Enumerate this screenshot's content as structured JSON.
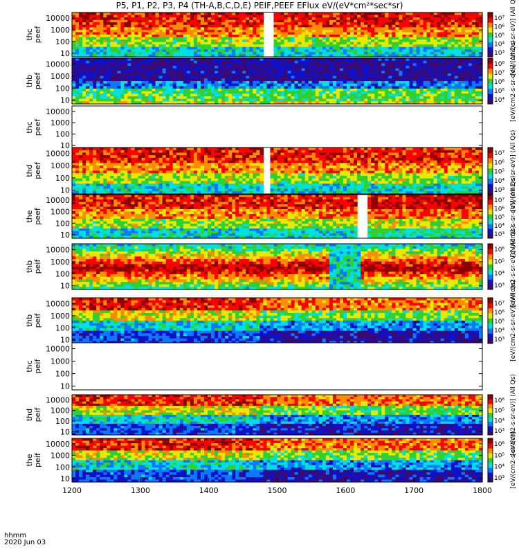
{
  "chart_data": {
    "type": "heatmap",
    "title": "P5, P1, P2, P3, P4 (TH-A,B,C,D,E) PEIF,PEEF EFlux eV/(eV*cm²*sec*sr)",
    "x_ticks": [
      "1200",
      "1300",
      "1400",
      "1500",
      "1600",
      "1700",
      "1800"
    ],
    "xlim": [
      1200,
      1800
    ],
    "x_unit_label": "hhmm",
    "date_label": "2020 Jun 03",
    "y_scale": "log",
    "ylim": [
      5,
      30000
    ],
    "y_ticks": [
      "10",
      "100",
      "1000",
      "10000"
    ],
    "colorscale": [
      "#3c0a6e",
      "#1010c8",
      "#0a78ff",
      "#00e0e0",
      "#30d030",
      "#e8e800",
      "#ff8c00",
      "#ff0000",
      "#8c0000"
    ],
    "panels": [
      {
        "probe": "thc",
        "species": "peef",
        "has_data": true,
        "gaps": [
          [
            1478,
            1493
          ]
        ],
        "colorbar_ticks": [
          "10⁷",
          "10⁶",
          "10⁵",
          "10⁴",
          "10³"
        ],
        "colorbar_label": "[eV/(cm2-s-sr-eV)] (All Qs)"
      },
      {
        "probe": "thb",
        "species": "peef",
        "has_data": true,
        "gaps": [],
        "colorbar_ticks": [
          "10⁸",
          "10⁷",
          "10⁶",
          "10⁵",
          "10⁴"
        ],
        "colorbar_label": "[eV/(cm2-s-sr-eV)] (All Qs)"
      },
      {
        "probe": "thc",
        "species": "peef",
        "has_data": false,
        "gaps": [],
        "colorbar_ticks": [],
        "colorbar_label": ""
      },
      {
        "probe": "thd",
        "species": "peef",
        "has_data": true,
        "gaps": [
          [
            1476,
            1486
          ]
        ],
        "colorbar_ticks": [
          "10⁷",
          "10⁶",
          "10⁵",
          "10⁴",
          "10³"
        ],
        "colorbar_label": "[eV/(cm2-s-sr-eV)] (All Qs)"
      },
      {
        "probe": "the",
        "species": "peef",
        "has_data": true,
        "gaps": [
          [
            1616,
            1630
          ]
        ],
        "colorbar_ticks": [
          "10⁷",
          "10⁶",
          "10⁵",
          "10⁴",
          "10³"
        ],
        "colorbar_label": "[eV/(cm2-s-sr-eV)] (All Qs)"
      },
      {
        "probe": "thb",
        "species": "peif",
        "has_data": true,
        "gaps": [],
        "colorbar_ticks": [
          "10⁶",
          "10⁵",
          "10⁴",
          "10³"
        ],
        "colorbar_label": "[eV/(cm2-s-sr-eV)] (All Qs)"
      },
      {
        "probe": "thb",
        "species": "peif",
        "has_data": true,
        "gaps": [],
        "colorbar_ticks": [
          "10⁷",
          "10⁶",
          "10⁵",
          "10⁴",
          "10³"
        ],
        "colorbar_label": "[eV/(cm2-s-sr-eV)] (All Qs)"
      },
      {
        "probe": "thc",
        "species": "peif",
        "has_data": false,
        "gaps": [],
        "colorbar_ticks": [],
        "colorbar_label": "(All Qs)"
      },
      {
        "probe": "thd",
        "species": "peif",
        "has_data": true,
        "gaps": [],
        "colorbar_ticks": [
          "10⁶",
          "10⁵",
          "10⁴",
          "10³"
        ],
        "colorbar_label": "[eV/(cm2-s-sr-eV)] (All Qs)"
      },
      {
        "probe": "the",
        "species": "peif",
        "has_data": true,
        "gaps": [],
        "colorbar_ticks": [
          "10⁶",
          "10⁵",
          "10⁴",
          "10³"
        ],
        "colorbar_label": "[eV/(cm2-s-sr-eV)]"
      }
    ]
  }
}
